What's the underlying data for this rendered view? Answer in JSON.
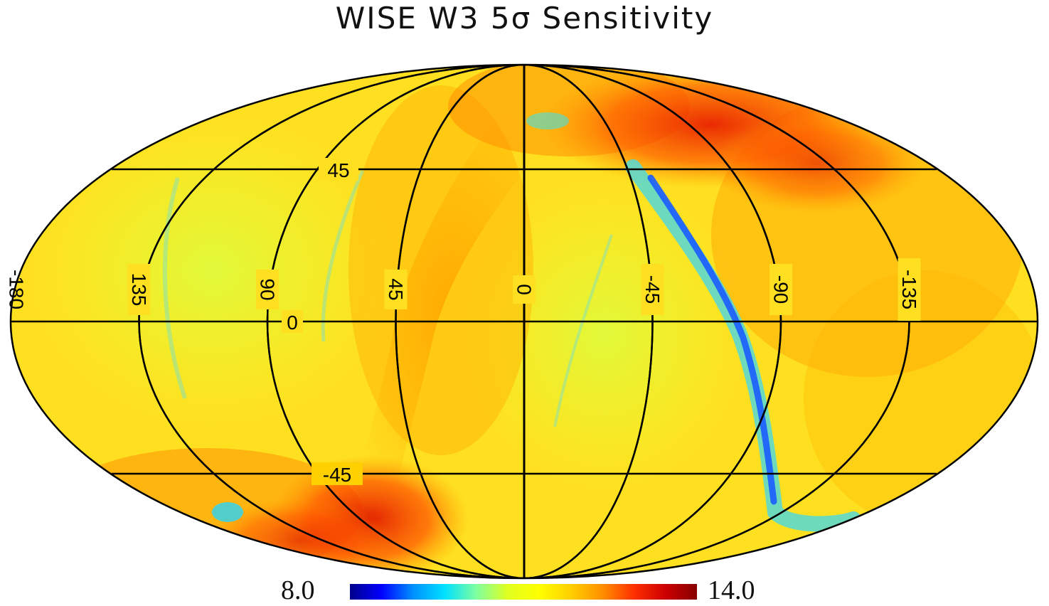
{
  "title": "WISE W3 5σ Sensitivity",
  "projection": "mollweide",
  "graticule": {
    "meridian_labels": [
      "-180",
      "135",
      "90",
      "45",
      "0",
      "-45",
      "-90",
      "-135"
    ],
    "parallel_labels": [
      "45",
      "0",
      "-45"
    ]
  },
  "colorbar": {
    "min_label": "8.0",
    "max_label": "14.0",
    "colormap": "jet",
    "stops": [
      "#00008b",
      "#0000ff",
      "#0090ff",
      "#00e0ff",
      "#7fffa0",
      "#e0ff20",
      "#ffff00",
      "#ffd000",
      "#ff9000",
      "#ff3000",
      "#cc0000",
      "#880000"
    ]
  },
  "colors": {
    "background_sky": "#ffe020",
    "band_orange": "#ffb000",
    "band_red": "#ff4a00",
    "band_cyan": "#55d8d8",
    "band_blue": "#1a5cff",
    "grid_line": "#000000"
  }
}
